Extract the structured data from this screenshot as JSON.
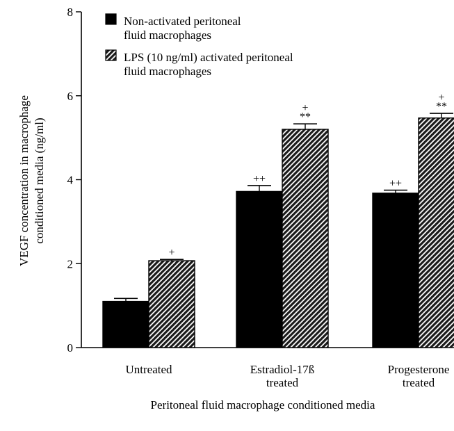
{
  "chart_data": {
    "type": "bar",
    "title": "",
    "categories": [
      [
        "Untreated"
      ],
      [
        "Estradiol-17ß",
        "treated"
      ],
      [
        "Progesterone",
        "treated"
      ]
    ],
    "series": [
      {
        "name": [
          "Non-activated peritoneal",
          "fluid macrophages"
        ],
        "fill": "solid",
        "color": "#000000",
        "values": [
          1.1,
          3.72,
          3.68
        ],
        "errors": [
          0.07,
          0.14,
          0.07
        ],
        "annotations": [
          [],
          [
            "++"
          ],
          [
            "++"
          ]
        ]
      },
      {
        "name": [
          "LPS (10 ng/ml) activated peritoneal",
          "fluid macrophages"
        ],
        "fill": "hatched",
        "color": "#000000",
        "values": [
          2.07,
          5.2,
          5.47
        ],
        "errors": [
          0.03,
          0.13,
          0.11
        ],
        "annotations": [
          [
            "+"
          ],
          [
            "+",
            "**"
          ],
          [
            "+",
            "**"
          ]
        ]
      }
    ],
    "ylabel": [
      "VEGF concentration in macrophage",
      "conditioned media (ng/ml)"
    ],
    "xlabel": "Peritoneal fluid macrophage conditioned media",
    "ylim": [
      0,
      8
    ],
    "yticks": [
      0,
      2,
      4,
      6,
      8
    ],
    "grid": false,
    "legend_position": "top-left"
  }
}
